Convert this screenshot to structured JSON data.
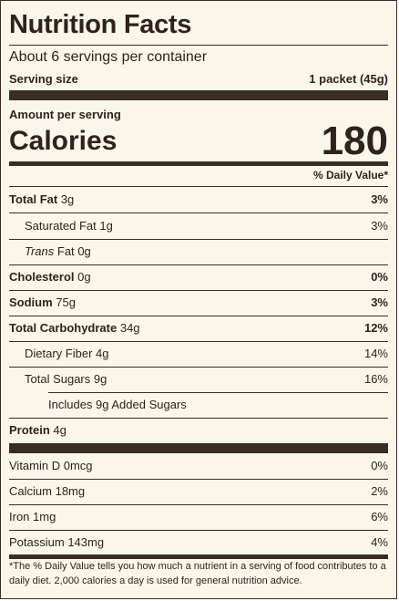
{
  "title": "Nutrition Facts",
  "servings_per_container": "About 6 servings per container",
  "serving_size": {
    "label": "Serving size",
    "value": "1 packet (45g)"
  },
  "amount_per_serving": "Amount per serving",
  "calories": {
    "label": "Calories",
    "value": "180"
  },
  "daily_value_header": "% Daily Value*",
  "nutrients": [
    {
      "name": "Total Fat",
      "amount": "3g",
      "dv": "3%"
    },
    {
      "name": "Saturated Fat",
      "amount": "1g",
      "dv": "3%"
    },
    {
      "name": "Trans",
      "name_suffix": "Fat",
      "amount": "0g",
      "dv": ""
    },
    {
      "name": "Cholesterol",
      "amount": "0g",
      "dv": "0%"
    },
    {
      "name": "Sodium",
      "amount": "75g",
      "dv": "3%"
    },
    {
      "name": "Total Carbohydrate",
      "amount": "34g",
      "dv": "12%"
    },
    {
      "name": "Dietary Fiber",
      "amount": "4g",
      "dv": "14%"
    },
    {
      "name": "Total Sugars",
      "amount": "9g",
      "dv": "16%"
    },
    {
      "name": "Includes 9g Added Sugars",
      "amount": "",
      "dv": ""
    },
    {
      "name": "Protein",
      "amount": "4g",
      "dv": ""
    }
  ],
  "vitamins": [
    {
      "name": "Vitamin D",
      "amount": "0mcg",
      "dv": "0%"
    },
    {
      "name": "Calcium",
      "amount": "18mg",
      "dv": "2%"
    },
    {
      "name": "Iron",
      "amount": "1mg",
      "dv": "6%"
    },
    {
      "name": "Potassium",
      "amount": "143mg",
      "dv": "4%"
    }
  ],
  "footnote": "*The % Daily Value tells you how much a nutrient in a serving of food contributes to a daily diet. 2,000 calories a day is used for general nutrition advice."
}
